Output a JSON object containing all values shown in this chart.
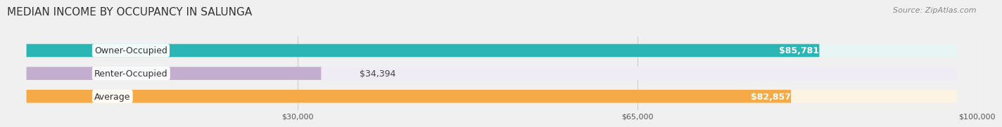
{
  "title": "MEDIAN INCOME BY OCCUPANCY IN SALUNGA",
  "source": "Source: ZipAtlas.com",
  "categories": [
    "Owner-Occupied",
    "Renter-Occupied",
    "Average"
  ],
  "values": [
    85781,
    34394,
    82857
  ],
  "labels": [
    "$85,781",
    "$34,394",
    "$82,857"
  ],
  "bar_colors": [
    "#2cb5b5",
    "#c4aed0",
    "#f5a947"
  ],
  "bar_bg_colors": [
    "#e8f5f5",
    "#f0ecf5",
    "#fdf3e3"
  ],
  "xmax": 100000,
  "xticks": [
    30000,
    65000,
    100000
  ],
  "xticklabels": [
    "$30,000",
    "$65,000",
    "$100,000"
  ],
  "title_fontsize": 11,
  "source_fontsize": 8,
  "label_fontsize": 9,
  "bar_height": 0.55,
  "background_color": "#f0f0f0"
}
